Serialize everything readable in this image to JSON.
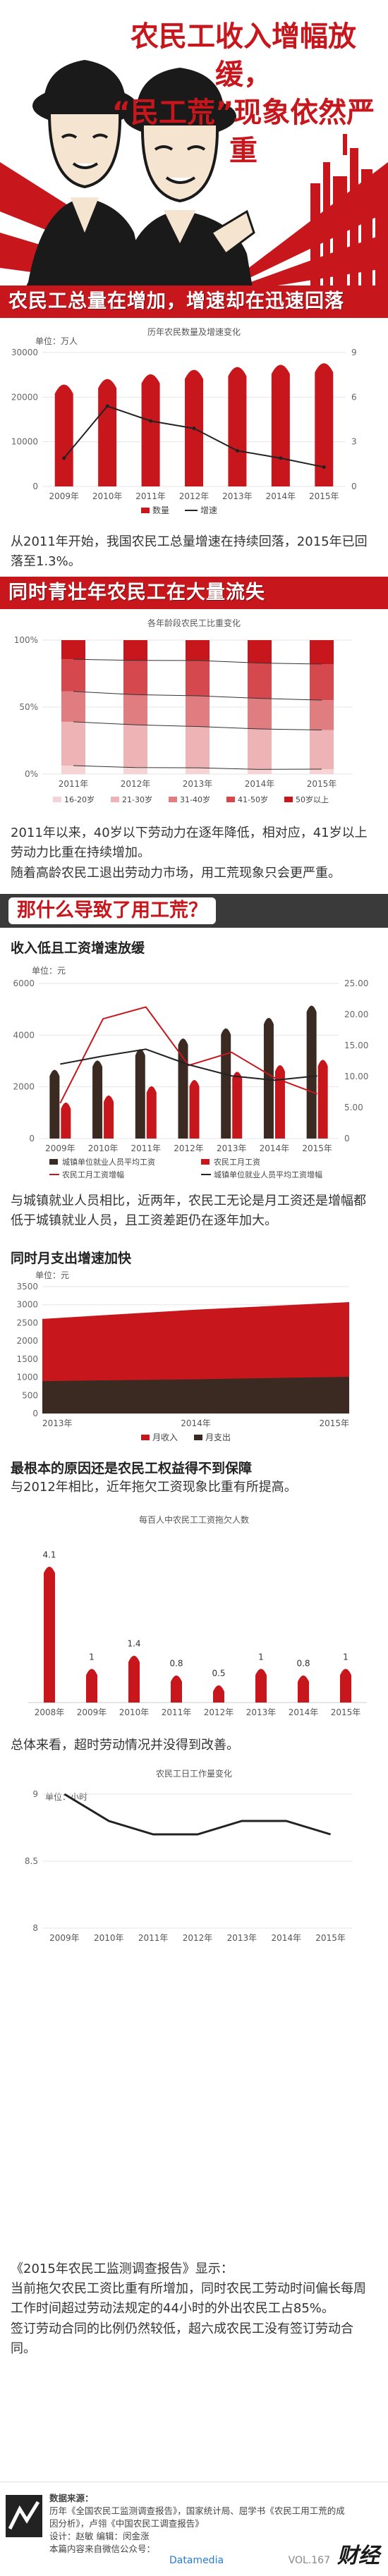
{
  "hero": {
    "title_line1": "农民工收入增幅放缓，",
    "title_line2": "“民工荒”现象依然严重"
  },
  "sections": {
    "s1": "农民工总量在增加，增速却在迅速回落",
    "s2": "同时青壮年农民工在大量流失",
    "s3": "那什么导致了用工荒？"
  },
  "text": {
    "p1": "从2011年开始，我国农民工总量增速在持续回落，2015年已回落至1.3%。",
    "p2": "2011年以来，40岁以下劳动力在逐年降低，相对应，41岁以上劳动力比重在持续增加。",
    "p2b": "随着高龄农民工退出劳动力市场，用工荒现象只会更严重。",
    "h3": "收入低且工资增速放缓",
    "p3": "与城镇就业人员相比，近两年，农民工无论是月工资还是增幅都低于城镇就业人员，且工资差距仍在逐年加大。",
    "h4": "同时月支出增速加快",
    "h5": "最根本的原因还是农民工权益得不到保障",
    "p5": "与2012年相比，近年拖欠工资现象比重有所提高。",
    "p6": "总体来看，超时劳动情况并没得到改善。",
    "p7": "《2015年农民工监测调查报告》显示：",
    "p7b": "当前拖欠农民工资比重有所增加，同时农民工劳动时间偏长每周工作时间超过劳动法规定的44小时的外出农民工占85%。",
    "p7c": "签订劳动合同的比例仍然较低，超六成农民工没有签订劳动合同。"
  },
  "chart_data": [
    {
      "type": "bar",
      "title": "历年农民数量及增速变化",
      "ylabel": "万人",
      "categories": [
        "2009年",
        "2010年",
        "2011年",
        "2012年",
        "2013年",
        "2014年",
        "2015年"
      ],
      "series": [
        {
          "name": "数量",
          "values": [
            22978,
            24223,
            25278,
            26261,
            26894,
            27395,
            27747
          ]
        },
        {
          "name": "增速",
          "type": "line",
          "axis": "right",
          "values": [
            1.9,
            5.4,
            4.4,
            3.9,
            2.4,
            1.9,
            1.3
          ]
        }
      ],
      "ylim": [
        0,
        30000
      ],
      "y2lim": [
        0,
        9
      ],
      "yticks": [
        "0",
        "10000",
        "20000",
        "30000"
      ],
      "y2ticks": [
        "0",
        "3",
        "6",
        "9"
      ]
    },
    {
      "type": "bar",
      "title": "各年龄段农民工比重变化",
      "categories": [
        "2011年",
        "2012年",
        "2013年",
        "2014年",
        "2015年"
      ],
      "series": [
        {
          "name": "16-20岁",
          "values": [
            6.3,
            4.9,
            4.7,
            3.5,
            3.7
          ]
        },
        {
          "name": "21-30岁",
          "values": [
            32.7,
            31.9,
            30.8,
            30.2,
            29.2
          ]
        },
        {
          "name": "31-40岁",
          "values": [
            22.7,
            22.5,
            22.9,
            22.8,
            22.3
          ]
        },
        {
          "name": "41-50岁",
          "values": [
            24.0,
            25.6,
            26.4,
            26.4,
            26.9
          ]
        },
        {
          "name": "50岁以上",
          "values": [
            14.3,
            15.1,
            15.2,
            17.1,
            17.9
          ]
        }
      ],
      "yticks": [
        "0%",
        "50%",
        "100%"
      ]
    },
    {
      "type": "bar",
      "ylabel": "元",
      "categories": [
        "2009年",
        "2010年",
        "2011年",
        "2012年",
        "2013年",
        "2014年",
        "2015年"
      ],
      "series": [
        {
          "name": "城镇单位就业人员平均工资",
          "values": [
            2687,
            3045,
            3483,
            3897,
            4290,
            4695,
            5169
          ]
        },
        {
          "name": "农民工月工资",
          "values": [
            1417,
            1690,
            2049,
            2290,
            2609,
            2864,
            3072
          ]
        },
        {
          "name": "农民工月工资增幅",
          "type": "line",
          "axis": "right",
          "values": [
            5.7,
            19.3,
            21.2,
            11.8,
            13.9,
            9.8,
            7.2
          ]
        },
        {
          "name": "城镇单位就业人员平均工资增幅",
          "type": "line",
          "axis": "right",
          "values": [
            12.0,
            13.3,
            14.4,
            11.9,
            10.1,
            9.4,
            10.1
          ]
        }
      ],
      "ylim": [
        0,
        6000
      ],
      "y2lim": [
        0,
        25
      ],
      "yticks": [
        "0",
        "2000",
        "4000",
        "6000"
      ],
      "y2ticks": [
        "0",
        "5.00",
        "10.00",
        "15.00",
        "20.00",
        "25.00"
      ]
    },
    {
      "type": "area",
      "ylabel": "元",
      "x": [
        "2013年",
        "2014年",
        "2015年"
      ],
      "series": [
        {
          "name": "月收入",
          "values": [
            2609,
            2864,
            3072
          ]
        },
        {
          "name": "月支出",
          "values": [
            892,
            944,
            1012
          ]
        }
      ],
      "ylim": [
        0,
        3500
      ],
      "yticks": [
        "0",
        "500",
        "1000",
        "1500",
        "2000",
        "2500",
        "3000",
        "3500"
      ]
    },
    {
      "type": "bar",
      "title": "每百人中农民工工资拖欠人数",
      "categories": [
        "2008年",
        "2009年",
        "2010年",
        "2011年",
        "2012年",
        "2013年",
        "2014年",
        "2015年"
      ],
      "values": [
        4.1,
        1.0,
        1.4,
        0.8,
        0.5,
        1.0,
        0.8,
        1.0
      ],
      "data_labels": [
        "4.1",
        "1",
        "1.4",
        "0.8",
        "0.5",
        "1",
        "0.8",
        "1"
      ]
    },
    {
      "type": "line",
      "title": "农民工日工作量变化",
      "ylabel": "小时",
      "categories": [
        "2009年",
        "2010年",
        "2011年",
        "2012年",
        "2013年",
        "2014年",
        "2015年"
      ],
      "values": [
        9.0,
        8.8,
        8.7,
        8.7,
        8.8,
        8.8,
        8.7
      ],
      "ylim": [
        8,
        9
      ],
      "yticks": [
        "8",
        "8.5",
        "9"
      ]
    }
  ],
  "footer": {
    "label": "数据来源：",
    "line1": "历年《全国农民工监测调查报告》，国家统计局、屈学书《农民工用工荒的成因分析》，卢翎《中国农民工调查报告》",
    "line2": "设计：赵敏  编辑：闵金涨",
    "line3": "本篇内容来自微信公众号：",
    "dm": "Datamedia",
    "vol": "VOL.167",
    "brand": "财经"
  },
  "colors": {
    "red": "#c8161d",
    "dark": "#3a2a22",
    "pink1": "#f6d3d4",
    "pink2": "#eeb3b5",
    "pink3": "#e07d81",
    "pink4": "#d4484e"
  }
}
